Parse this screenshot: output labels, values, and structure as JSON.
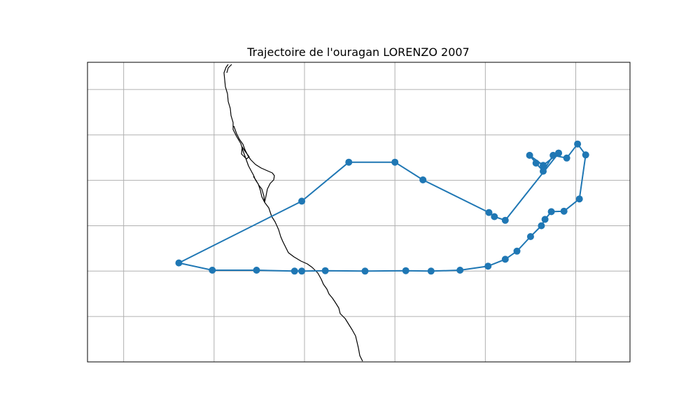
{
  "title": "Trajectoire de l'ouragan LORENZO 2007",
  "colors": {
    "track": "#1f77b4",
    "coastline": "#000000",
    "grid": "#b0b0b0",
    "frame": "#000000"
  },
  "chart_data": {
    "type": "scatter",
    "title": "Trajectoire de l'ouragan LORENZO 2007",
    "grid": true,
    "legend": "none",
    "x_gridlines": [
      -98,
      -97,
      -96,
      -95,
      -94,
      -93
    ],
    "y_gridlines": [
      23,
      22,
      21,
      20,
      19,
      18
    ],
    "xlim": [
      -98.4,
      -92.4
    ],
    "ylim": [
      17.0,
      23.6
    ],
    "series": [
      {
        "x": [
          -93.19,
          -93.36,
          -93.51,
          -93.44,
          -93.36,
          -93.25,
          -93.1,
          -92.98,
          -92.89,
          -92.96,
          -93.13,
          -93.27,
          -93.34,
          -93.38,
          -93.5,
          -93.65,
          -93.78,
          -93.97,
          -94.28,
          -94.6,
          -94.88,
          -95.33,
          -95.77,
          -96.03,
          -96.11,
          -96.53,
          -97.02,
          -97.39,
          -96.03,
          -95.51,
          -95.0,
          -94.69,
          -93.96,
          -93.9,
          -93.78,
          -93.19
        ],
        "y": [
          21.6,
          21.33,
          21.55,
          21.38,
          21.2,
          21.55,
          21.49,
          21.8,
          21.56,
          20.59,
          20.32,
          20.31,
          20.14,
          20.0,
          19.76,
          19.44,
          19.26,
          19.11,
          19.02,
          19.0,
          19.01,
          19.0,
          19.01,
          19.0,
          19.0,
          19.02,
          19.02,
          19.18,
          20.54,
          21.4,
          21.4,
          21.01,
          20.29,
          20.2,
          20.12,
          21.6
        ]
      }
    ]
  }
}
